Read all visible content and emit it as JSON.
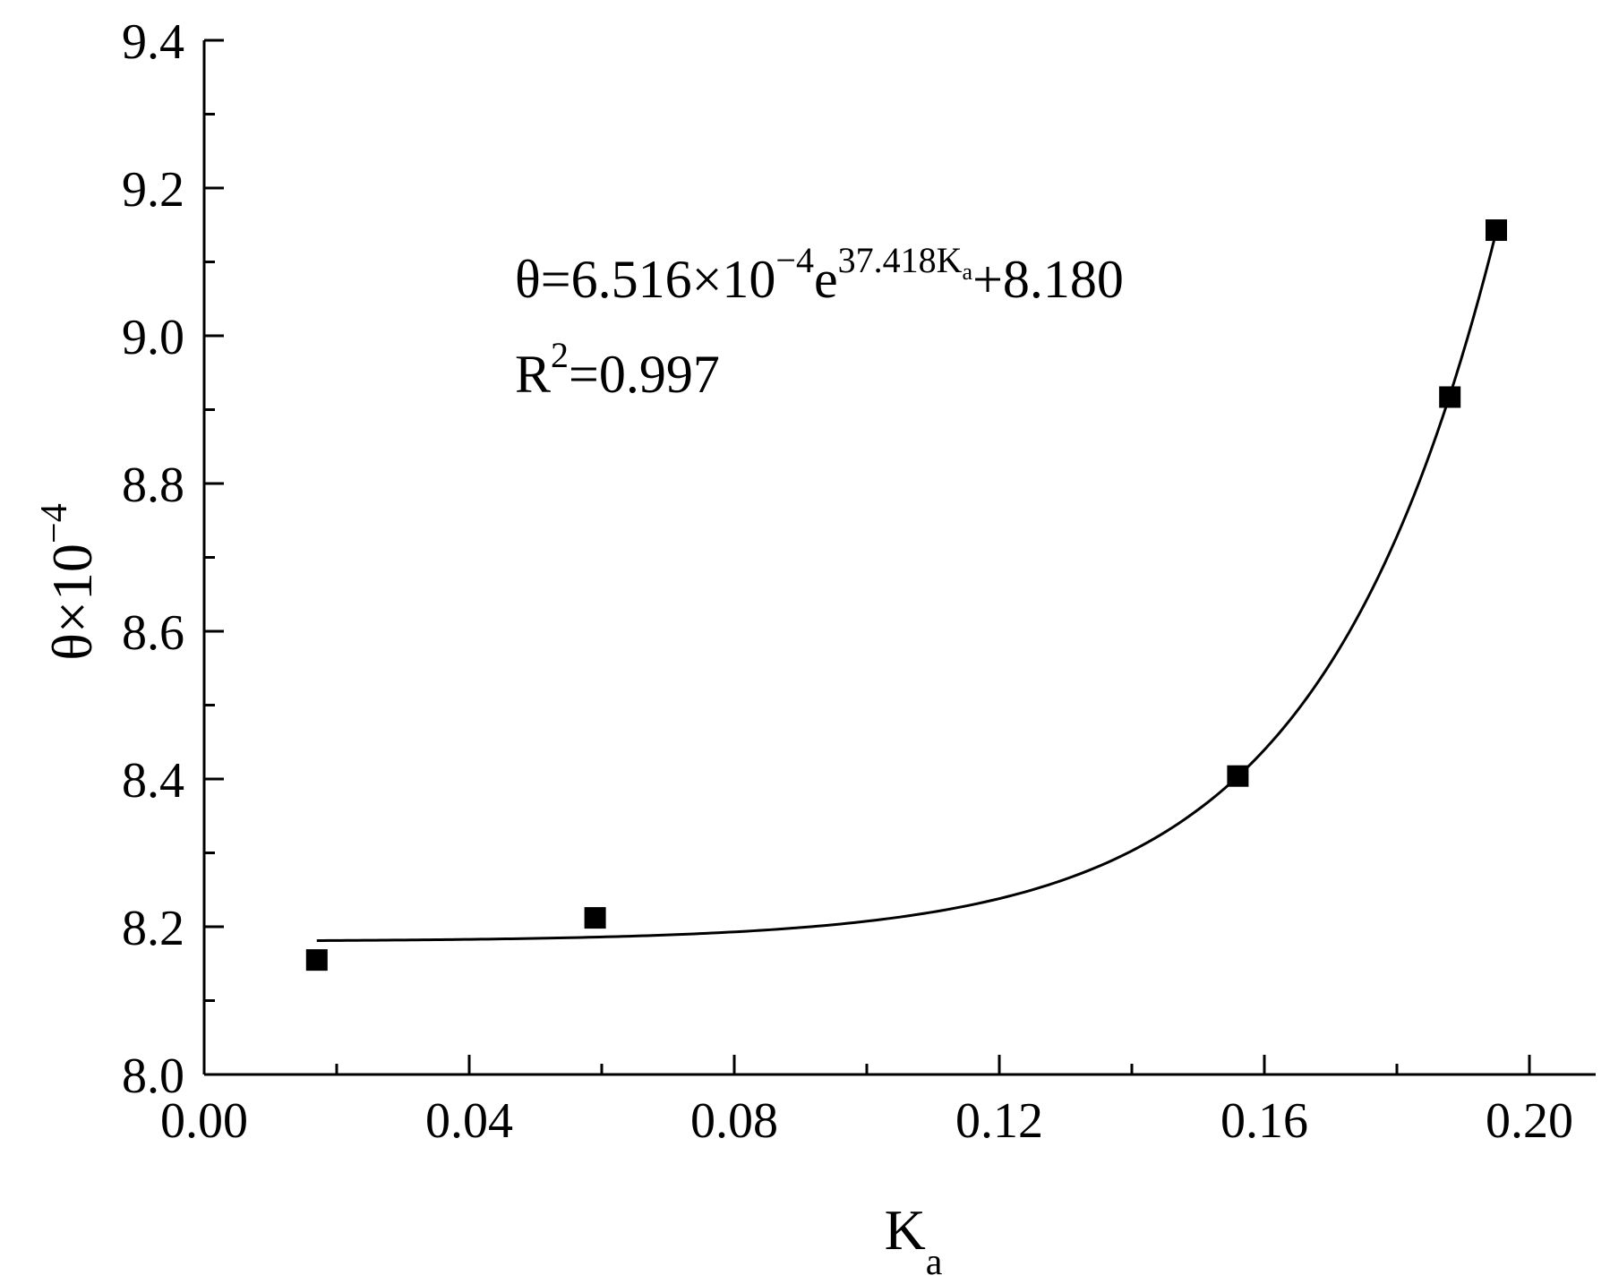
{
  "chart_data": {
    "type": "scatter",
    "x_label": {
      "main": "K",
      "sub": "a"
    },
    "y_label": {
      "main": "θ×10",
      "sup": "−4"
    },
    "xlim": [
      0.0,
      0.21
    ],
    "ylim": [
      8.0,
      9.4
    ],
    "x_ticks": [
      "0.00",
      "0.04",
      "0.08",
      "0.12",
      "0.16",
      "0.20"
    ],
    "y_ticks": [
      "8.0",
      "8.2",
      "8.4",
      "8.6",
      "8.8",
      "9.0",
      "9.2",
      "9.4"
    ],
    "x_tick_values": [
      0.0,
      0.04,
      0.08,
      0.12,
      0.16,
      0.2
    ],
    "y_tick_values": [
      8.0,
      8.2,
      8.4,
      8.6,
      8.8,
      9.0,
      9.2,
      9.4
    ],
    "x_minor_tick_values": [
      0.02,
      0.06,
      0.1,
      0.14,
      0.18
    ],
    "y_minor_tick_values": [
      8.1,
      8.3,
      8.5,
      8.7,
      8.9,
      9.1,
      9.3
    ],
    "grid": false,
    "points": [
      {
        "x": 0.017,
        "y": 8.155
      },
      {
        "x": 0.059,
        "y": 8.212
      },
      {
        "x": 0.156,
        "y": 8.404
      },
      {
        "x": 0.188,
        "y": 8.917
      },
      {
        "x": 0.195,
        "y": 9.143
      }
    ],
    "fit": {
      "a": 0.0006516,
      "b": 37.418,
      "c": 8.18,
      "x_range": [
        0.017,
        0.195
      ]
    },
    "equation": {
      "part1": "θ=6.516×10",
      "sup1": "−4",
      "part2": "e",
      "sup2": "37.418K",
      "sub2": "a",
      "part3": "+8.180"
    },
    "r_squared": {
      "part1": "R",
      "sup": "2",
      "part2": "=0.997"
    }
  }
}
